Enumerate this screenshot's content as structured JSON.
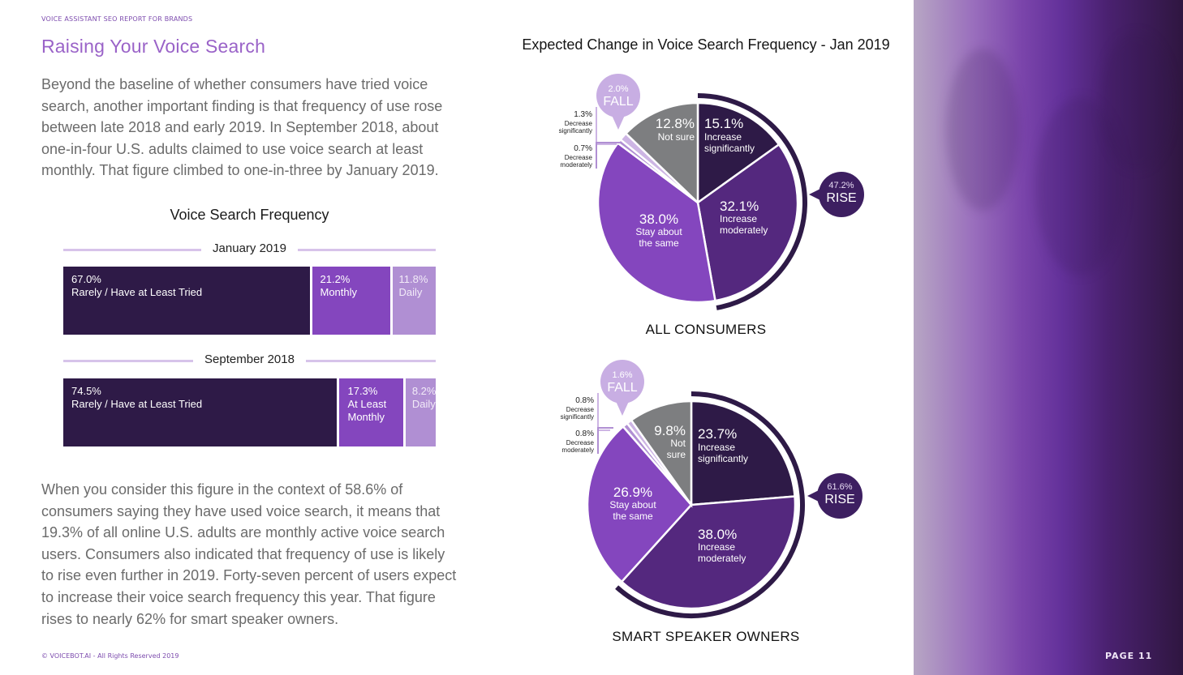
{
  "header": {
    "kicker": "VOICE ASSISTANT SEO REPORT FOR BRANDS",
    "title": "Raising Your Voice Search"
  },
  "body": {
    "paragraph1": "Beyond the baseline of whether consumers have tried voice search, another important finding is that frequency of use rose between late 2018 and early 2019. In September 2018, about one-in-four U.S. adults claimed to use voice search at least monthly. That figure climbed to one-in-three by January 2019.",
    "paragraph2": "When you consider this figure in the context of 58.6% of consumers saying they have used voice search, it means that 19.3% of all online U.S. adults are monthly active voice search users. Consumers also indicated that frequency of use is likely to rise even further in 2019. Forty-seven percent of users expect to increase their voice search frequency this year. That figure rises to nearly 62% for smart speaker owners."
  },
  "footer": {
    "copyright": "© VOICEBOT.AI - All Rights Reserved 2019",
    "page": "PAGE 11"
  },
  "colors": {
    "darkest": "#2e1a47",
    "dark": "#54287e",
    "mid": "#8446be",
    "light": "#b08fd3",
    "lighter": "#cdb5e4",
    "grey": "#7d7e80",
    "accent_title": "#9a63c8"
  },
  "chart_data": [
    {
      "type": "bar",
      "stacked": "100%",
      "title": "Voice Search Frequency",
      "groups": [
        {
          "label": "January 2019",
          "segments": [
            {
              "value": 67.0,
              "value_label": "67.0%",
              "label": "Rarely / Have at Least Tried",
              "color": "#2e1a47"
            },
            {
              "value": 21.2,
              "value_label": "21.2%",
              "label": "Monthly",
              "color": "#8446be"
            },
            {
              "value": 11.8,
              "value_label": "11.8%",
              "label": "Daily",
              "color": "#b08fd3"
            }
          ]
        },
        {
          "label": "September 2018",
          "segments": [
            {
              "value": 74.5,
              "value_label": "74.5%",
              "label": "Rarely / Have at Least Tried",
              "color": "#2e1a47"
            },
            {
              "value": 17.3,
              "value_label": "17.3%",
              "label": "At Least Monthly",
              "color": "#8446be"
            },
            {
              "value": 8.2,
              "value_label": "8.2%",
              "label": "Daily",
              "color": "#b08fd3"
            }
          ]
        }
      ]
    },
    {
      "type": "pie",
      "title": "Expected Change in Voice Search Frequency - Jan 2019",
      "pies": [
        {
          "caption": "ALL CONSUMERS",
          "slices": [
            {
              "label": "Increase significantly",
              "value": 15.1,
              "value_label": "15.1%",
              "color": "#2e1a47"
            },
            {
              "label": "Increase moderately",
              "value": 32.1,
              "value_label": "32.1%",
              "color": "#54287e"
            },
            {
              "label": "Stay about the same",
              "value": 38.0,
              "value_label": "38.0%",
              "color": "#8446be"
            },
            {
              "label": "Decrease moderately",
              "value": 0.7,
              "value_label": "0.7%",
              "color": "#b08fd3"
            },
            {
              "label": "Decrease significantly",
              "value": 1.3,
              "value_label": "1.3%",
              "color": "#cdb5e4"
            },
            {
              "label": "Not sure",
              "value": 12.8,
              "value_label": "12.8%",
              "color": "#7d7e80"
            }
          ],
          "rise": {
            "value_label": "47.2%",
            "label": "RISE"
          },
          "fall": {
            "value_label": "2.0%",
            "label": "FALL"
          }
        },
        {
          "caption": "SMART SPEAKER OWNERS",
          "slices": [
            {
              "label": "Increase significantly",
              "value": 23.7,
              "value_label": "23.7%",
              "color": "#2e1a47"
            },
            {
              "label": "Increase moderately",
              "value": 38.0,
              "value_label": "38.0%",
              "color": "#54287e"
            },
            {
              "label": "Stay about the same",
              "value": 26.9,
              "value_label": "26.9%",
              "color": "#8446be"
            },
            {
              "label": "Decrease moderately",
              "value": 0.8,
              "value_label": "0.8%",
              "color": "#b08fd3"
            },
            {
              "label": "Decrease significantly",
              "value": 0.8,
              "value_label": "0.8%",
              "color": "#cdb5e4"
            },
            {
              "label": "Not sure",
              "value": 9.8,
              "value_label": "9.8%",
              "color": "#7d7e80"
            }
          ],
          "rise": {
            "value_label": "61.6%",
            "label": "RISE"
          },
          "fall": {
            "value_label": "1.6%",
            "label": "FALL"
          }
        }
      ]
    }
  ]
}
